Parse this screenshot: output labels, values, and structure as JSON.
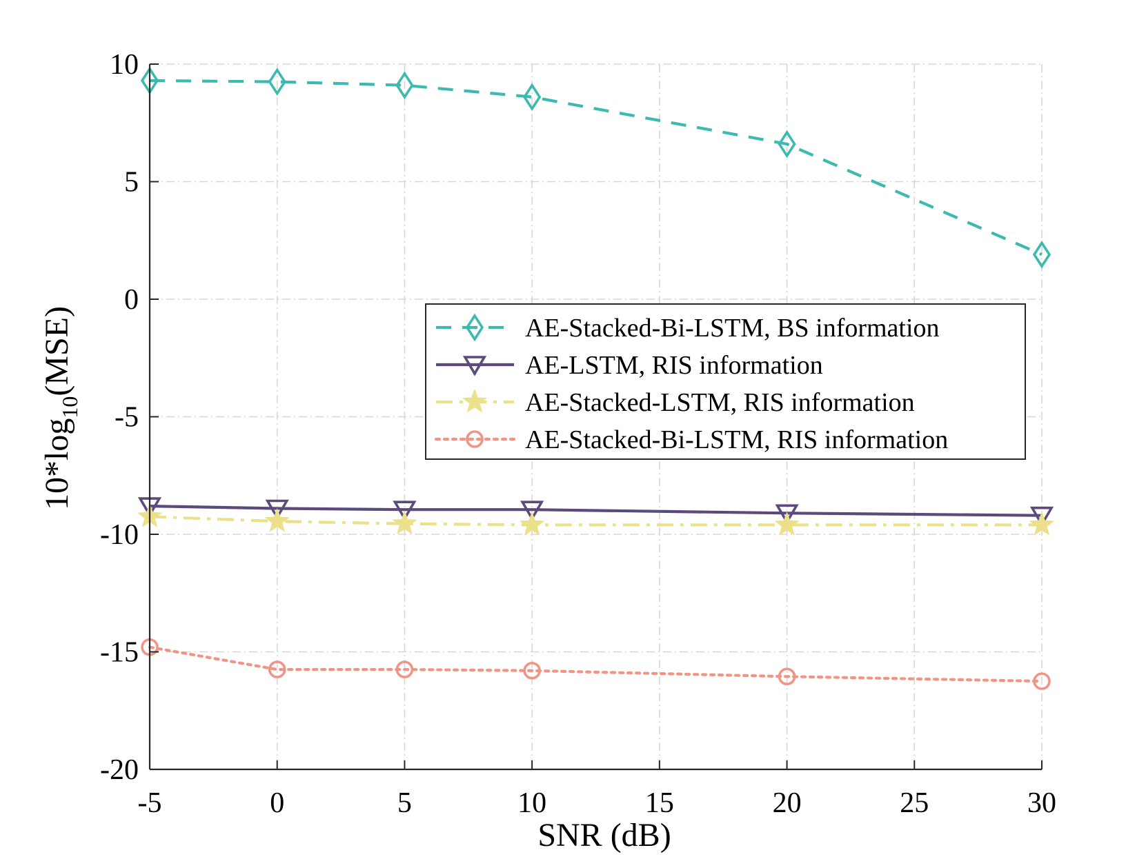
{
  "chart_data": {
    "type": "line",
    "title": "",
    "xlabel": "SNR (dB)",
    "ylabel_prefix": "10*log",
    "ylabel_sub": "10",
    "ylabel_suffix": "(MSE)",
    "xlim": [
      -5,
      30
    ],
    "ylim": [
      -20,
      10
    ],
    "xticks": [
      -5,
      0,
      5,
      10,
      15,
      20,
      25,
      30
    ],
    "yticks": [
      -20,
      -15,
      -10,
      -5,
      0,
      5,
      10
    ],
    "xtick_labels": [
      "-5",
      "0",
      "5",
      "10",
      "15",
      "20",
      "25",
      "30"
    ],
    "ytick_labels": [
      "-20",
      "-15",
      "-10",
      "-5",
      "0",
      "5",
      "10"
    ],
    "grid": true,
    "legend_position": "center-right",
    "x": [
      -5,
      0,
      5,
      10,
      20,
      30
    ],
    "series": [
      {
        "name": "AE-Stacked-Bi-LSTM, BS information",
        "values": [
          9.3,
          9.25,
          9.1,
          8.6,
          6.6,
          1.9
        ],
        "color": "#3dbab0",
        "line_style": "dashed",
        "marker": "diamond"
      },
      {
        "name": "AE-LSTM, RIS information",
        "values": [
          -8.8,
          -8.9,
          -8.95,
          -8.95,
          -9.1,
          -9.2
        ],
        "color": "#5b4a7b",
        "line_style": "solid",
        "marker": "triangle-down"
      },
      {
        "name": "AE-Stacked-LSTM, RIS information",
        "values": [
          -9.25,
          -9.45,
          -9.55,
          -9.6,
          -9.6,
          -9.6
        ],
        "color": "#ece08a",
        "line_style": "dashdot",
        "marker": "star"
      },
      {
        "name": "AE-Stacked-Bi-LSTM, RIS information",
        "values": [
          -14.8,
          -15.75,
          -15.75,
          -15.8,
          -16.05,
          -16.25
        ],
        "color": "#f09585",
        "line_style": "dotted",
        "marker": "circle"
      }
    ]
  }
}
